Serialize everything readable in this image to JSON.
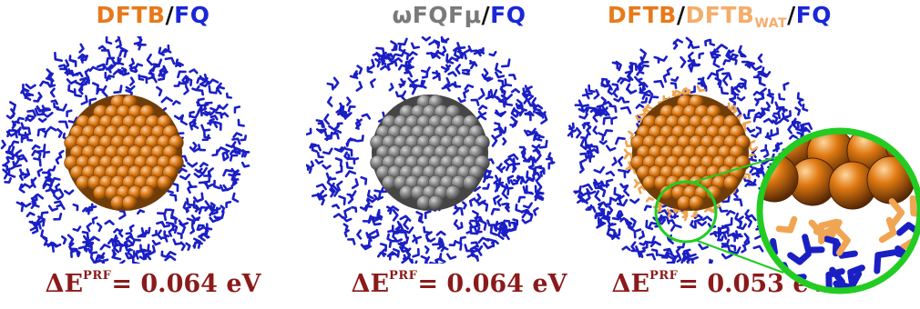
{
  "panels": [
    {
      "title_parts": [
        {
          "text": "DFTB",
          "sub": "",
          "color": "#e8791a"
        },
        {
          "text": "/",
          "sub": "",
          "color": "#111111"
        },
        {
          "text": "FQ",
          "sub": "",
          "color": "#1a27d6"
        }
      ],
      "energy_symbol": "ΔE",
      "energy_superscript": "PRF",
      "energy_value": "= 0.064 eV",
      "sphere_color": "#e07a12",
      "show_orange_shell": false
    },
    {
      "title_parts": [
        {
          "text": "ωFQFμ",
          "sub": "",
          "color": "#7a7a7a"
        },
        {
          "text": "/",
          "sub": "",
          "color": "#111111"
        },
        {
          "text": "FQ",
          "sub": "",
          "color": "#1a27d6"
        }
      ],
      "energy_symbol": "ΔE",
      "energy_superscript": "PRF",
      "energy_value": "= 0.064 eV",
      "sphere_color": "#8a8a8a",
      "show_orange_shell": false
    },
    {
      "title_parts": [
        {
          "text": "DFTB",
          "sub": "",
          "color": "#e8791a"
        },
        {
          "text": "/",
          "sub": "",
          "color": "#111111"
        },
        {
          "text": "DFTB",
          "sub": "WAT",
          "color": "#f5ad6a"
        },
        {
          "text": "/",
          "sub": "",
          "color": "#111111"
        },
        {
          "text": "FQ",
          "sub": "",
          "color": "#1a27d6"
        }
      ],
      "energy_symbol": "ΔE",
      "energy_superscript": "PRF",
      "energy_value": "= 0.053 eV",
      "sphere_color": "#e07a12",
      "show_orange_shell": true
    }
  ],
  "colors": {
    "water_fq": "#1a1fc4",
    "water_dftb": "#f0a552",
    "zoom_ring": "#22cc22",
    "energy_text": "#8b1a1a"
  }
}
